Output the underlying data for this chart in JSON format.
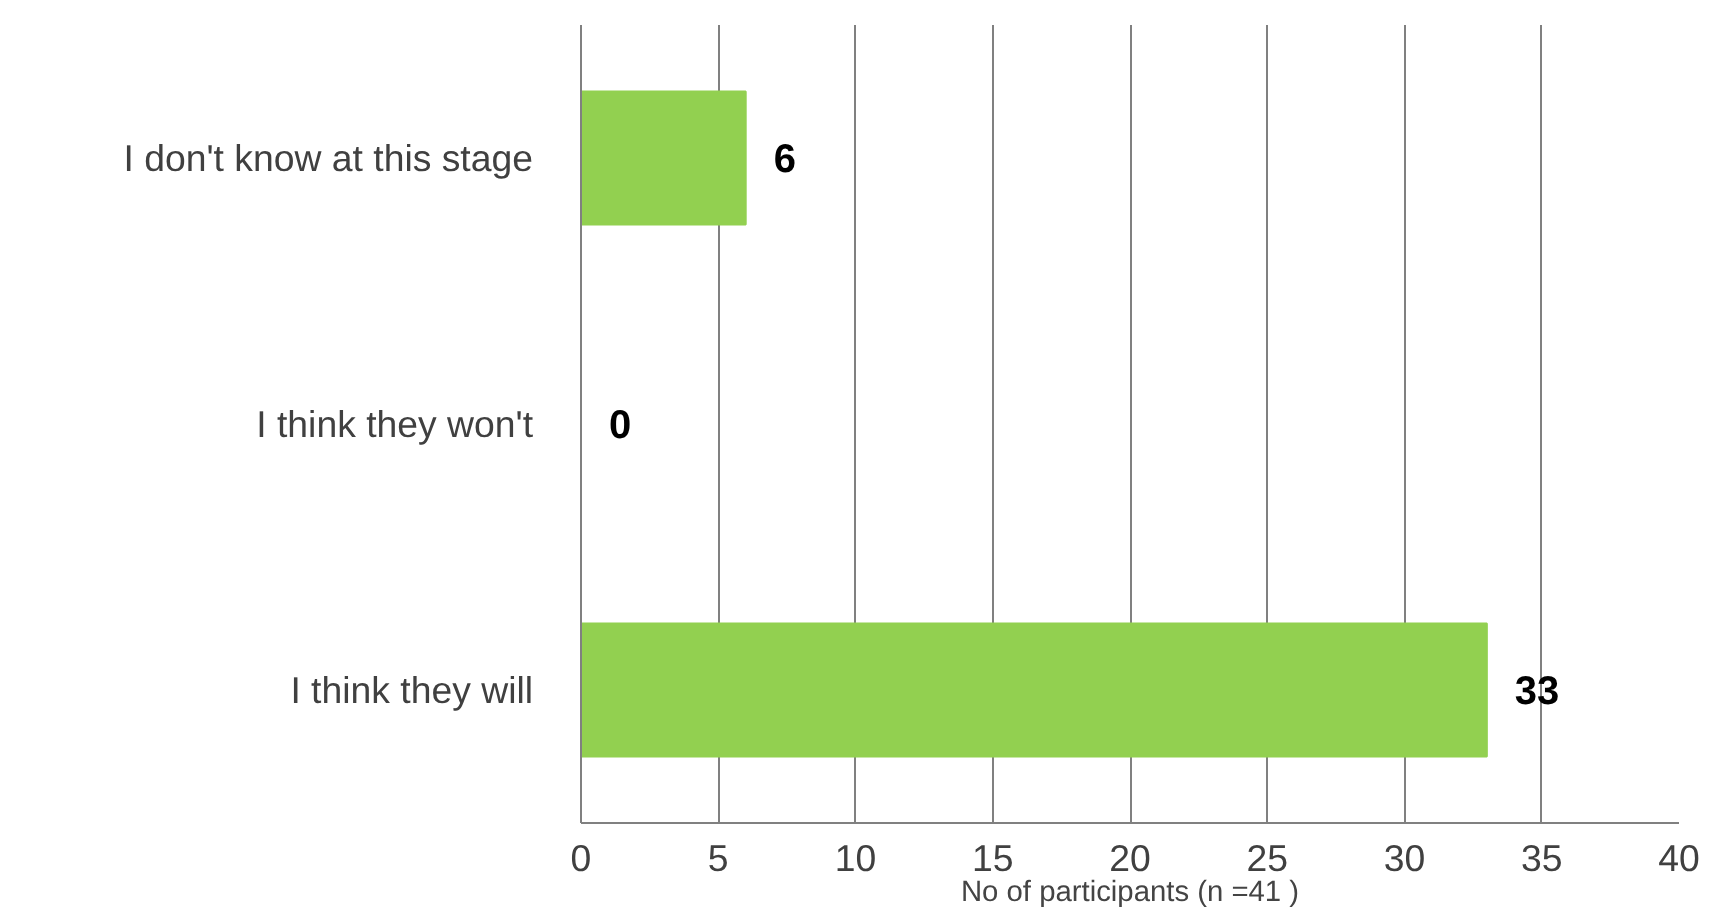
{
  "chart_data": {
    "type": "bar",
    "orientation": "horizontal",
    "categories": [
      "I don't know at this stage",
      "I think they won't",
      "I think they will"
    ],
    "values": [
      6,
      0,
      33
    ],
    "color": "#92d050",
    "xlim": [
      0,
      40
    ],
    "xticks": [
      0,
      5,
      10,
      15,
      20,
      25,
      30,
      35,
      40
    ],
    "grid": "x",
    "data_labels": true,
    "xlabel": "No of participants (n =41 )"
  }
}
